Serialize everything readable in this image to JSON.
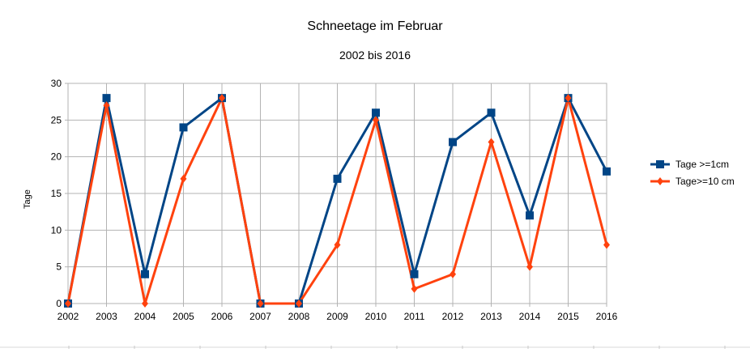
{
  "chart_data": {
    "type": "line",
    "title": "Schneetage im Februar",
    "subtitle": "2002 bis 2016",
    "xlabel": "",
    "ylabel": "Tage",
    "ylim": [
      0,
      30
    ],
    "yticks": [
      "0",
      "5",
      "10",
      "15",
      "20",
      "25",
      "30"
    ],
    "grid": true,
    "legend_position": "right",
    "categories": [
      "2002",
      "2003",
      "2004",
      "2005",
      "2006",
      "2007",
      "2008",
      "2009",
      "2010",
      "2011",
      "2012",
      "2013",
      "2014",
      "2015",
      "2016"
    ],
    "series": [
      {
        "name": "Tage >=1cm",
        "color": "#004586",
        "marker": "square",
        "values": [
          0,
          28,
          4,
          24,
          28,
          0,
          0,
          17,
          26,
          4,
          22,
          26,
          12,
          28,
          18
        ]
      },
      {
        "name": "Tage>=10 cm",
        "color": "#ff420e",
        "marker": "diamond",
        "values": [
          0,
          27,
          0,
          17,
          28,
          0,
          0,
          8,
          25,
          2,
          4,
          22,
          5,
          28,
          8
        ]
      }
    ]
  }
}
